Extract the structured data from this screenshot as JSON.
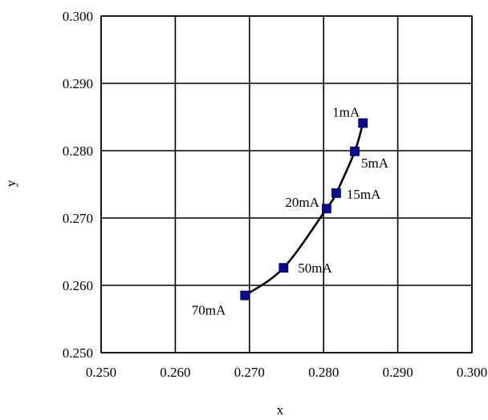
{
  "chart_data": {
    "type": "scatter",
    "xlabel": "x",
    "ylabel": "y",
    "xlim": [
      0.25,
      0.3
    ],
    "ylim": [
      0.25,
      0.3
    ],
    "x_ticks": [
      "0.250",
      "0.260",
      "0.270",
      "0.280",
      "0.290",
      "0.300"
    ],
    "y_ticks": [
      "0.250",
      "0.260",
      "0.270",
      "0.280",
      "0.290",
      "0.300"
    ],
    "grid": true,
    "series": [
      {
        "marker": "square",
        "marker_color": "#0a0a8c",
        "line_color": "#000000",
        "points": [
          {
            "x": 0.2853,
            "y": 0.2841,
            "label": "1mA"
          },
          {
            "x": 0.2842,
            "y": 0.2799,
            "label": "5mA"
          },
          {
            "x": 0.2817,
            "y": 0.2737,
            "label": "15mA"
          },
          {
            "x": 0.2804,
            "y": 0.2714,
            "label": "20mA"
          },
          {
            "x": 0.2746,
            "y": 0.2626,
            "label": "50mA"
          },
          {
            "x": 0.2694,
            "y": 0.2585,
            "label": "70mA"
          }
        ]
      }
    ]
  }
}
